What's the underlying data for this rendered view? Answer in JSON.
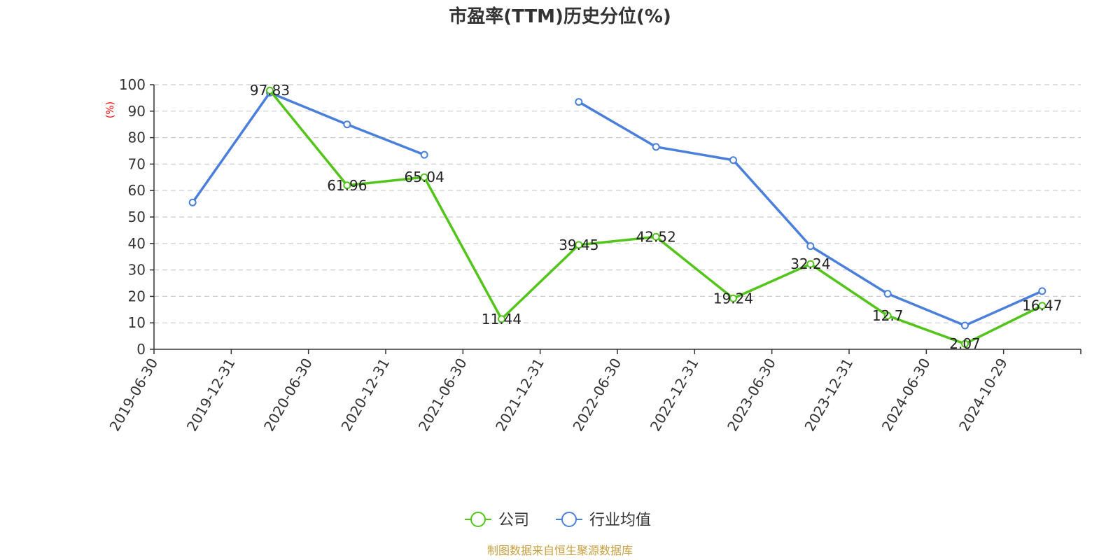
{
  "chart_data": {
    "type": "line",
    "title": "市盈率(TTM)历史分位(%)",
    "ylabel": "(%)",
    "xlabel": "",
    "ylim": [
      0,
      100
    ],
    "yticks": [
      0,
      10,
      20,
      30,
      40,
      50,
      60,
      70,
      80,
      90,
      100
    ],
    "grid": true,
    "legend_position": "bottom",
    "x_tick_labels": [
      "2019-06-30",
      "2019-12-31",
      "2020-06-30",
      "2020-12-31",
      "2021-06-30",
      "2021-12-31",
      "2022-06-30",
      "2022-12-31",
      "2023-06-30",
      "2023-12-31",
      "2024-06-30",
      "2024-10-29"
    ],
    "series": [
      {
        "name": "公司",
        "color": "#52c41a",
        "show_labels": true,
        "values": [
          null,
          97.83,
          61.96,
          65.04,
          11.44,
          39.45,
          42.52,
          19.24,
          32.24,
          12.7,
          2.07,
          16.47
        ],
        "labels": [
          "",
          "97.83",
          "61.96",
          "65.04",
          "11.44",
          "39.45",
          "42.52",
          "19.24",
          "32.24",
          "12.7",
          "2.07",
          "16.47"
        ]
      },
      {
        "name": "行业均值",
        "color": "#4a7fdb",
        "show_labels": false,
        "values": [
          55.5,
          97,
          85,
          73.5,
          null,
          93.5,
          76.5,
          71.5,
          39,
          21,
          9,
          22
        ],
        "labels": []
      }
    ]
  },
  "source_text": "制图数据来自恒生聚源数据库",
  "colors": {
    "unit_label": "#ff0000",
    "source": "#c8a040",
    "grid": "#cccccc",
    "axis": "#333333"
  }
}
